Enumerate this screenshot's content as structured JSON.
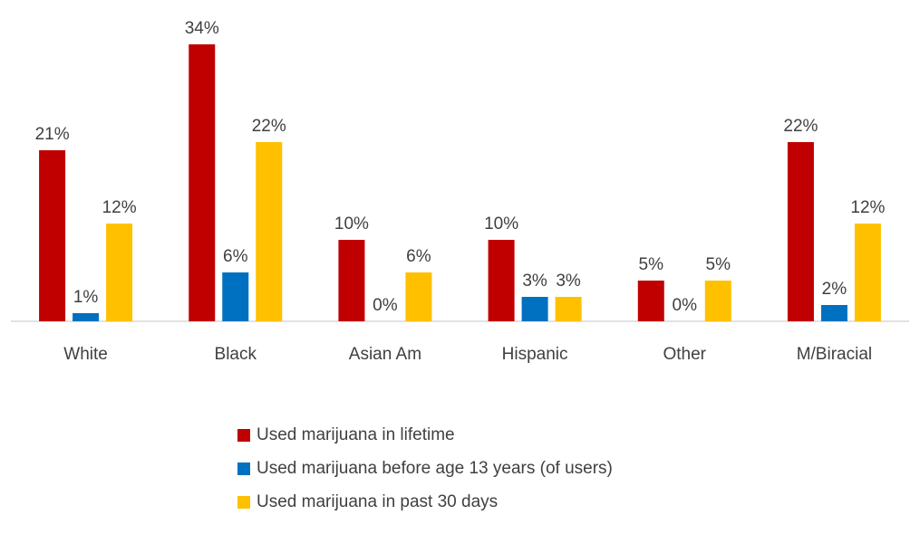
{
  "chart_data": {
    "type": "bar",
    "title": "",
    "xlabel": "",
    "ylabel": "",
    "ylim": [
      0,
      34
    ],
    "grid": false,
    "legend_position": "bottom",
    "categories": [
      "White",
      "Black",
      "Asian Am",
      "Hispanic",
      "Other",
      "M/Biracial"
    ],
    "series": [
      {
        "name": "Used marijuana in lifetime",
        "color": "#C00000",
        "values": [
          21,
          34,
          10,
          10,
          5,
          22
        ]
      },
      {
        "name": "Used marijuana before age 13 years (of users)",
        "color": "#0070C0",
        "values": [
          1,
          6,
          0,
          3,
          0,
          2
        ]
      },
      {
        "name": "Used marijuana in past 30 days",
        "color": "#FFC000",
        "values": [
          12,
          22,
          6,
          3,
          5,
          12
        ]
      }
    ],
    "value_suffix": "%"
  }
}
